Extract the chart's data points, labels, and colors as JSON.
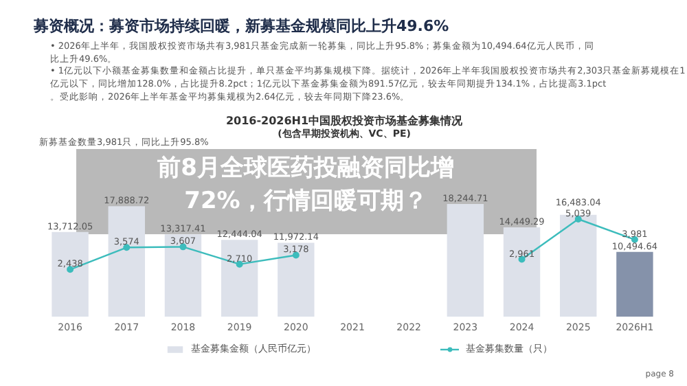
{
  "chart_data": {
    "type": "bar",
    "title": "募资概况：募资市场持续回暖，新募基金规模同比上升49.6%",
    "categories": [
      "2016",
      "2017",
      "2018",
      "2019",
      "2020",
      "2021",
      "2022",
      "2023",
      "2024",
      "2025",
      "2026H1"
    ],
    "series": [
      {
        "name": "基金募集金额（人民币亿元）",
        "colors": [
          "#dde1ea",
          "#dde1ea",
          "#dde1ea",
          "#dde1ea",
          "#dde1ea",
          "#dde1ea",
          "#dde1ea",
          "#dde1ea",
          "#dde1ea",
          "#dde1ea",
          "#8592aa"
        ],
        "values": [
          13712.05,
          17888.72,
          13317.41,
          12444.04,
          11972.14,
          null,
          null,
          18244.71,
          14449.29,
          16483.04,
          10494.64
        ],
        "value_labels": [
          "13,712.05",
          "17,888.72",
          "13,317.41",
          "12,444.04",
          "11,972.14",
          null,
          null,
          "18,244.71",
          "14,449.29",
          "16,483.04",
          "10,494.64"
        ]
      },
      {
        "name": "基金募集数量（只）",
        "type": "line",
        "axis": "y2",
        "color": "#3cbcbc",
        "marker": "circle",
        "values": [
          2438,
          3574,
          3607,
          2710,
          3178,
          null,
          null,
          null,
          2961,
          5039,
          3981
        ],
        "value_labels": [
          "2,438",
          "3,574",
          "3,607",
          "2,710",
          "3,178",
          null,
          null,
          null,
          "2,961",
          "5,039",
          "3,981"
        ]
      }
    ],
    "tick_labels": "x",
    "legend": "bottom",
    "annotations": [
      "• 2026年上半年，我国股权投资市场共有3,981只基金完成新一轮募集，同比上升95.8%；募集金额为10,494.64亿元人民币，同比上升49.6%。",
      "• 1亿元以下小额基金募集数量和金额占比提升，单只基金平均募集规模下降。据统计，2026年上半年我国股权投资市场共有2,303只基金新募规模在1亿元以下，同比增加128.0%，占比提升8.2pct；1亿元以下基金募集金额为891.57亿元，较去年同期提升134.1%，占比提高3.1pct。受此影响，2026年上半年基金平均募集规模为2.64亿元，较去年同期下降23.6%。",
      "2016-2026H1中国股权投资市场基金募集情况",
      "(包含早期投资机构、VC、PE)",
      "新募基金数量3,981只，同比上升95.8%",
      "前8月全球医药投融资同比增72%，行情回暖可期？",
      "page 8"
    ]
  }
}
